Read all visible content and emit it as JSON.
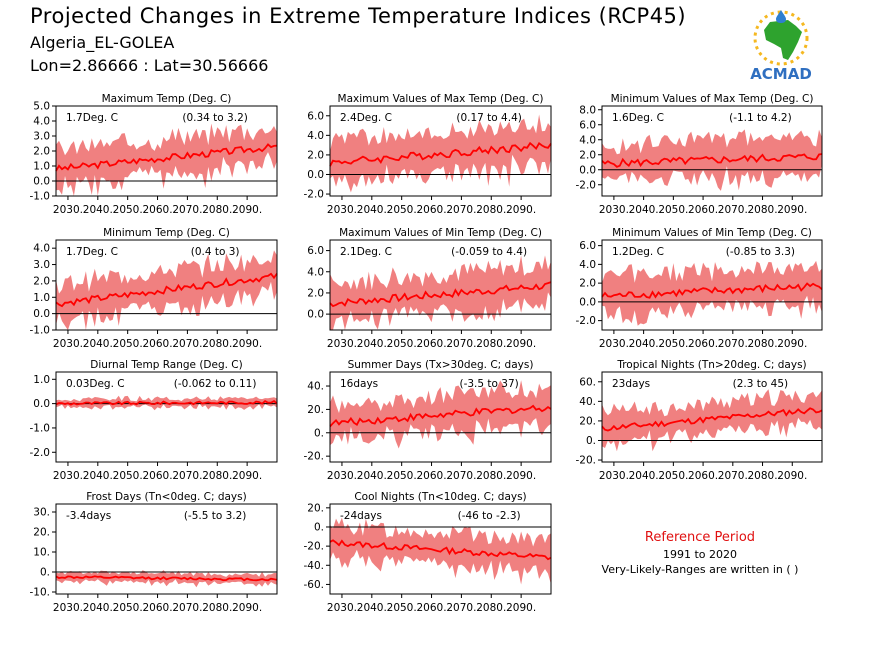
{
  "header": {
    "title": "Projected Changes in Extreme Temperature Indices (RCP45)",
    "station": "Algeria_EL-GOLEA",
    "coords": "Lon=2.86666 : Lat=30.56666"
  },
  "logo": {
    "text": "ACMAD"
  },
  "reference": {
    "title": "Reference Period",
    "years": "1991 to 2020",
    "note": "Very-Likely-Ranges are written in ( )"
  },
  "colors": {
    "band": "#f08080",
    "line": "#ff0000",
    "zero": "#000000"
  },
  "chart_data": [
    {
      "type": "line",
      "title": "Maximum Temp (Deg. C)",
      "stat": "1.7Deg. C",
      "range": "(0.34 to 3.2)",
      "xlim": [
        2026,
        2100
      ],
      "x_ticks": [
        2030,
        2040,
        2050,
        2060,
        2070,
        2080,
        2090
      ],
      "x_tick_labels": [
        "2030.",
        "2040.",
        "2050.",
        "2060.",
        "2070.",
        "2080.",
        "2090."
      ],
      "ylim": [
        -1,
        5
      ],
      "y_ticks": [
        -1,
        0,
        1,
        2,
        3,
        4,
        5
      ],
      "y_tick_labels": [
        "-1.0",
        "0.0",
        "1.0",
        "2.0",
        "3.0",
        "4.0",
        "5.0"
      ],
      "series": [
        {
          "values_start": 0.8,
          "values_end": 2.3,
          "band_halfwidth": 1.3,
          "noise": 0.22
        }
      ]
    },
    {
      "type": "line",
      "title": "Maximum Values of Max Temp (Deg. C)",
      "stat": "2.4Deg. C",
      "range": "(0.17 to 4.4)",
      "xlim": [
        2026,
        2100
      ],
      "x_ticks": [
        2030,
        2040,
        2050,
        2060,
        2070,
        2080,
        2090
      ],
      "x_tick_labels": [
        "2030.",
        "2040.",
        "2050.",
        "2060.",
        "2070.",
        "2080.",
        "2090."
      ],
      "ylim": [
        -2.2,
        7
      ],
      "y_ticks": [
        -2,
        0,
        2,
        4,
        6
      ],
      "y_tick_labels": [
        "-2.0",
        "0.0",
        "2.0",
        "4.0",
        "6.0"
      ],
      "series": [
        {
          "values_start": 1.2,
          "values_end": 3.0,
          "band_halfwidth": 2.2,
          "noise": 0.4
        }
      ]
    },
    {
      "type": "line",
      "title": "Minimum Values of Max Temp (Deg. C)",
      "stat": "1.6Deg. C",
      "range": "(-1.1 to 4.2)",
      "xlim": [
        2026,
        2100
      ],
      "x_ticks": [
        2030,
        2040,
        2050,
        2060,
        2070,
        2080,
        2090
      ],
      "x_tick_labels": [
        "2030.",
        "2040.",
        "2050.",
        "2060.",
        "2070.",
        "2080.",
        "2090."
      ],
      "ylim": [
        -3.5,
        8.5
      ],
      "y_ticks": [
        -2,
        0,
        2,
        4,
        6,
        8
      ],
      "y_tick_labels": [
        "-2.0",
        "0.0",
        "2.0",
        "4.0",
        "6.0",
        "8.0"
      ],
      "series": [
        {
          "values_start": 0.8,
          "values_end": 1.8,
          "band_halfwidth": 2.6,
          "noise": 0.5
        }
      ]
    },
    {
      "type": "line",
      "title": "Minimum Temp (Deg. C)",
      "stat": "1.7Deg. C",
      "range": "(0.4 to 3)",
      "xlim": [
        2026,
        2100
      ],
      "x_ticks": [
        2030,
        2040,
        2050,
        2060,
        2070,
        2080,
        2090
      ],
      "x_tick_labels": [
        "2030.",
        "2040.",
        "2050.",
        "2060.",
        "2070.",
        "2080.",
        "2090."
      ],
      "ylim": [
        -1,
        4.5
      ],
      "y_ticks": [
        -1,
        0,
        1,
        2,
        3,
        4
      ],
      "y_tick_labels": [
        "-1.0",
        "0.0",
        "1.0",
        "2.0",
        "3.0",
        "4.0"
      ],
      "series": [
        {
          "values_start": 0.6,
          "values_end": 2.3,
          "band_halfwidth": 1.2,
          "noise": 0.2
        }
      ]
    },
    {
      "type": "line",
      "title": "Maximum Values of Min Temp (Deg. C)",
      "stat": "2.1Deg. C",
      "range": "(-0.059 to 4.4)",
      "xlim": [
        2026,
        2100
      ],
      "x_ticks": [
        2030,
        2040,
        2050,
        2060,
        2070,
        2080,
        2090
      ],
      "x_tick_labels": [
        "2030.",
        "2040.",
        "2050.",
        "2060.",
        "2070.",
        "2080.",
        "2090."
      ],
      "ylim": [
        -1.5,
        7
      ],
      "y_ticks": [
        0,
        2,
        4,
        6
      ],
      "y_tick_labels": [
        "0.0",
        "2.0",
        "4.0",
        "6.0"
      ],
      "series": [
        {
          "values_start": 1.0,
          "values_end": 2.7,
          "band_halfwidth": 2.0,
          "noise": 0.35
        }
      ]
    },
    {
      "type": "line",
      "title": "Minimum Values of Min Temp (Deg. C)",
      "stat": "1.2Deg. C",
      "range": "(-0.85 to 3.3)",
      "xlim": [
        2026,
        2100
      ],
      "x_ticks": [
        2030,
        2040,
        2050,
        2060,
        2070,
        2080,
        2090
      ],
      "x_tick_labels": [
        "2030.",
        "2040.",
        "2050.",
        "2060.",
        "2070.",
        "2080.",
        "2090."
      ],
      "ylim": [
        -3,
        6.6
      ],
      "y_ticks": [
        -2,
        0,
        2,
        4,
        6
      ],
      "y_tick_labels": [
        "-2.0",
        "0.0",
        "2.0",
        "4.0",
        "6.0"
      ],
      "series": [
        {
          "values_start": 0.6,
          "values_end": 1.7,
          "band_halfwidth": 2.1,
          "noise": 0.4
        }
      ]
    },
    {
      "type": "line",
      "title": "Diurnal Temp Range (Deg. C)",
      "stat": "0.03Deg. C",
      "range": "(-0.062 to 0.11)",
      "xlim": [
        2026,
        2100
      ],
      "x_ticks": [
        2030,
        2040,
        2050,
        2060,
        2070,
        2080,
        2090
      ],
      "x_tick_labels": [
        "2030.",
        "2040.",
        "2050.",
        "2060.",
        "2070.",
        "2080.",
        "2090."
      ],
      "ylim": [
        -2.4,
        1.3
      ],
      "y_ticks": [
        -2,
        -1,
        0,
        1
      ],
      "y_tick_labels": [
        "-2.0",
        "-1.0",
        "0.0",
        "1.0"
      ],
      "series": [
        {
          "values_start": 0.0,
          "values_end": 0.05,
          "band_halfwidth": 0.18,
          "noise": 0.06
        }
      ]
    },
    {
      "type": "line",
      "title": "Summer Days (Tx>30deg. C; days)",
      "stat": "16days",
      "range": "(-3.5 to 37)",
      "xlim": [
        2026,
        2100
      ],
      "x_ticks": [
        2030,
        2040,
        2050,
        2060,
        2070,
        2080,
        2090
      ],
      "x_tick_labels": [
        "2030.",
        "2040.",
        "2050.",
        "2060.",
        "2070.",
        "2080.",
        "2090."
      ],
      "ylim": [
        -25,
        52
      ],
      "y_ticks": [
        -20,
        0,
        20,
        40
      ],
      "y_tick_labels": [
        "-20.",
        "0.",
        "20.",
        "40."
      ],
      "series": [
        {
          "values_start": 8,
          "values_end": 22,
          "band_halfwidth": 17,
          "noise": 3
        }
      ]
    },
    {
      "type": "line",
      "title": "Tropical Nights (Tn>20deg. C; days)",
      "stat": "23days",
      "range": "(2.3 to 45)",
      "xlim": [
        2026,
        2100
      ],
      "x_ticks": [
        2030,
        2040,
        2050,
        2060,
        2070,
        2080,
        2090
      ],
      "x_tick_labels": [
        "2030.",
        "2040.",
        "2050.",
        "2060.",
        "2070.",
        "2080.",
        "2090."
      ],
      "ylim": [
        -22,
        70
      ],
      "y_ticks": [
        -20,
        0,
        20,
        40,
        60
      ],
      "y_tick_labels": [
        "-20.",
        "0.",
        "20.",
        "40.",
        "60."
      ],
      "series": [
        {
          "values_start": 12,
          "values_end": 32,
          "band_halfwidth": 16,
          "noise": 3
        }
      ]
    },
    {
      "type": "line",
      "title": "Frost Days (Tn<0deg. C; days)",
      "stat": "-3.4days",
      "range": "(-5.5 to 3.2)",
      "xlim": [
        2026,
        2100
      ],
      "x_ticks": [
        2030,
        2040,
        2050,
        2060,
        2070,
        2080,
        2090
      ],
      "x_tick_labels": [
        "2030.",
        "2040.",
        "2050.",
        "2060.",
        "2070.",
        "2080.",
        "2090."
      ],
      "ylim": [
        -11,
        34
      ],
      "y_ticks": [
        -10,
        0,
        10,
        20,
        30
      ],
      "y_tick_labels": [
        "-10.",
        "0.",
        "10.",
        "20.",
        "30."
      ],
      "series": [
        {
          "values_start": -2.5,
          "values_end": -3.8,
          "band_halfwidth": 2.5,
          "noise": 0.6
        }
      ]
    },
    {
      "type": "line",
      "title": "Cool Nights (Tn<10deg. C; days)",
      "stat": "-24days",
      "range": "(-46 to -2.3)",
      "xlim": [
        2026,
        2100
      ],
      "x_ticks": [
        2030,
        2040,
        2050,
        2060,
        2070,
        2080,
        2090
      ],
      "x_tick_labels": [
        "2030.",
        "2040.",
        "2050.",
        "2060.",
        "2070.",
        "2080.",
        "2090."
      ],
      "ylim": [
        -70,
        24
      ],
      "y_ticks": [
        -60,
        -40,
        -20,
        0,
        20
      ],
      "y_tick_labels": [
        "-60.",
        "-40.",
        "-20.",
        "0.",
        "20."
      ],
      "series": [
        {
          "values_start": -16,
          "values_end": -32,
          "band_halfwidth": 18,
          "noise": 3
        }
      ]
    }
  ]
}
